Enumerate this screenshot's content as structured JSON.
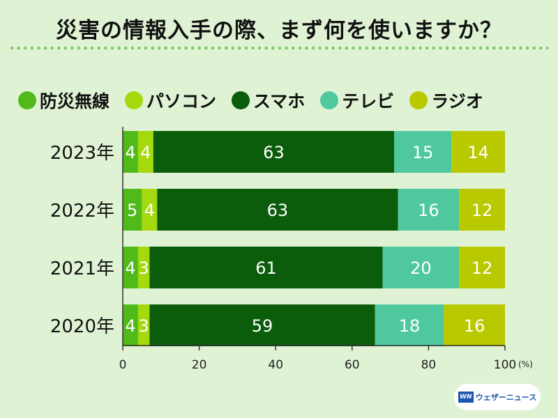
{
  "title": "災害の情報入手の際、まず何を使いますか？",
  "logo": {
    "mark": "WN",
    "text": "ウェザーニュース"
  },
  "chart_data": {
    "type": "bar",
    "orientation": "horizontal",
    "stacked": true,
    "categories": [
      "2023年",
      "2022年",
      "2021年",
      "2020年"
    ],
    "series": [
      {
        "name": "防災無線",
        "values": [
          4,
          5,
          4,
          4
        ],
        "color": "#4fba1a"
      },
      {
        "name": "パソコン",
        "values": [
          4,
          4,
          3,
          3
        ],
        "color": "#a3d90d"
      },
      {
        "name": "スマホ",
        "values": [
          63,
          63,
          61,
          59
        ],
        "color": "#0b5c0b"
      },
      {
        "name": "テレビ",
        "values": [
          15,
          16,
          20,
          18
        ],
        "color": "#50c89e"
      },
      {
        "name": "ラジオ",
        "values": [
          14,
          12,
          12,
          16
        ],
        "color": "#b9c900"
      }
    ],
    "xlim": [
      0,
      100
    ],
    "xticks": [
      0,
      20,
      40,
      60,
      80,
      100
    ],
    "xunit": "(%)",
    "legend_position": "top"
  }
}
